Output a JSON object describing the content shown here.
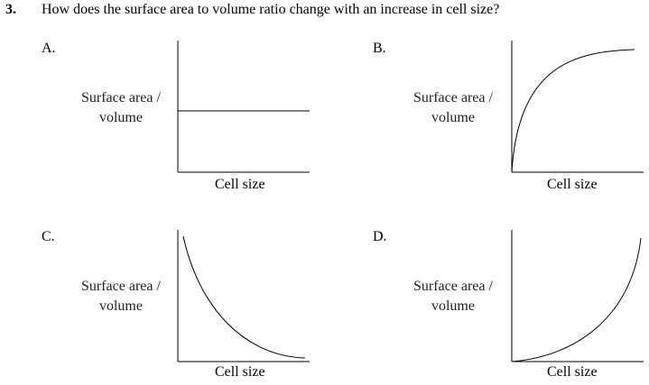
{
  "question": {
    "number": "3.",
    "text": "How does the surface area to volume ratio change with an increase in cell size?"
  },
  "options": [
    {
      "letter": "A.",
      "ylabel_line1": "Surface area",
      "ylabel_line2": "volume",
      "ylabel_sep": "/",
      "xlabel": "Cell size",
      "shape": "horizontal-line"
    },
    {
      "letter": "B.",
      "ylabel_line1": "Surface area",
      "ylabel_line2": "volume",
      "ylabel_sep": "/",
      "xlabel": "Cell size",
      "shape": "increasing-concave-down"
    },
    {
      "letter": "C.",
      "ylabel_line1": "Surface area",
      "ylabel_line2": "volume",
      "ylabel_sep": "/",
      "xlabel": "Cell size",
      "shape": "decreasing-convex"
    },
    {
      "letter": "D.",
      "ylabel_line1": "Surface area",
      "ylabel_line2": "volume",
      "ylabel_sep": "/",
      "xlabel": "Cell size",
      "shape": "increasing-concave-up"
    }
  ]
}
